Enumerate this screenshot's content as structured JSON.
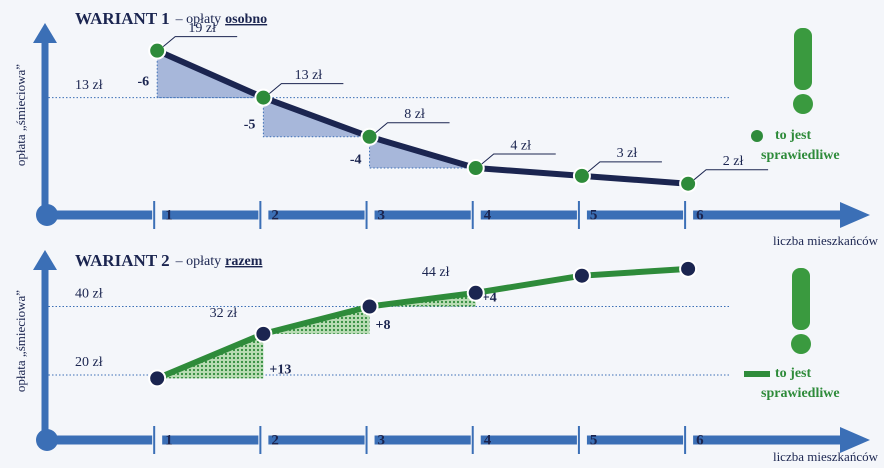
{
  "chart_data": [
    {
      "type": "line",
      "title": "WARIANT 1",
      "subtitle": "– opłaty",
      "subtitle_emphasis": "osobno",
      "y_label": "opłata „śmieciowa”",
      "x_label": "liczba mieszkańców",
      "x": [
        1,
        2,
        3,
        4,
        5,
        6
      ],
      "values": [
        19,
        13,
        8,
        4,
        3,
        2
      ],
      "value_labels": [
        "19 zł",
        "13 zł",
        "8 zł",
        "4 zł",
        "3 zł",
        "2 zł"
      ],
      "changes": [
        -6,
        -5,
        -4
      ],
      "xlim": [
        0,
        7.6
      ],
      "xticks": [
        1,
        2,
        3,
        4,
        5,
        6
      ],
      "ylim": [
        -2,
        21
      ],
      "yticks": [
        {
          "value": 13,
          "label": "13 zł"
        }
      ],
      "line_color": "#1b2550",
      "marker_color": "#2e8b3a",
      "area_color": "#8ea2cf",
      "axis_color": "#3b6fb6",
      "note": [
        "to jest",
        "sprawiedliwe"
      ]
    },
    {
      "type": "line",
      "title": "WARIANT 2",
      "subtitle": "– opłaty",
      "subtitle_emphasis": "razem",
      "y_label": "opłata „śmieciowa”",
      "x_label": "liczba mieszkańców",
      "x": [
        1,
        2,
        3,
        4,
        5,
        6
      ],
      "values": [
        19,
        32,
        40,
        44,
        49,
        51
      ],
      "value_labels": [
        null,
        "32 zł",
        null,
        "44 zł",
        null,
        null
      ],
      "changes": [
        {
          "value": 13,
          "label": "+13"
        },
        {
          "value": 8,
          "label": "+8"
        },
        {
          "value": 4,
          "label": "+4"
        }
      ],
      "xlim": [
        0,
        7.6
      ],
      "xticks": [
        1,
        2,
        3,
        4,
        5,
        6
      ],
      "ylim": [
        1,
        53
      ],
      "yticks": [
        {
          "value": 20,
          "label": "20 zł"
        },
        {
          "value": 40,
          "label": "40 zł"
        }
      ],
      "line_color": "#2e8b3a",
      "marker_color": "#1b2550",
      "area_color": "#2e8b3a",
      "axis_color": "#3b6fb6",
      "note": [
        "to jest",
        "sprawiedliwe"
      ]
    }
  ]
}
